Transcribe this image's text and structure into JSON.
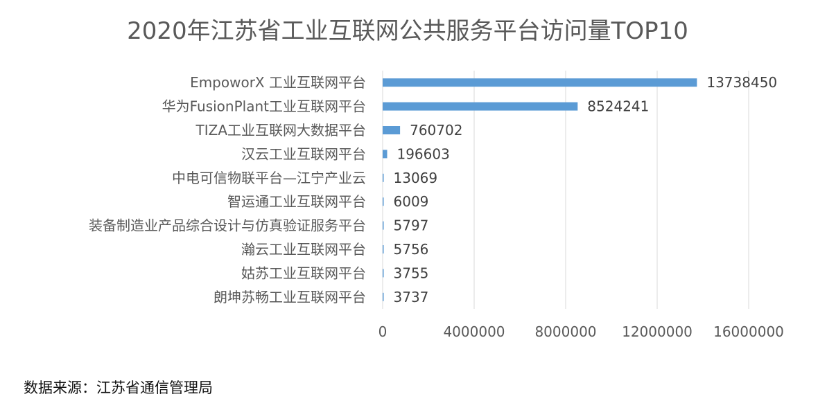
{
  "chart_data": {
    "type": "bar",
    "orientation": "horizontal",
    "title": "2020年江苏省工业互联网公共服务平台访问量TOP10",
    "categories": [
      "EmpoworX 工业互联网平台",
      "华为FusionPlant工业互联网平台",
      "TIZA工业互联网大数据平台",
      "汉云工业互联网平台",
      "中电可信物联平台—江宁产业云",
      "智运通工业互联网平台",
      "装备制造业产品综合设计与仿真验证服务平台",
      "瀚云工业互联网平台",
      "姑苏工业互联网平台",
      "朗坤苏畅工业互联网平台"
    ],
    "values": [
      13738450,
      8524241,
      760702,
      196603,
      13069,
      6009,
      5797,
      5756,
      3755,
      3737
    ],
    "xlim": [
      0,
      16000000
    ],
    "xticks": [
      0,
      4000000,
      8000000,
      12000000,
      16000000
    ],
    "grid": true,
    "bar_color": "#5B9BD5",
    "grid_color": "#D9D9D9"
  },
  "source_text": "数据来源：江苏省通信管理局"
}
